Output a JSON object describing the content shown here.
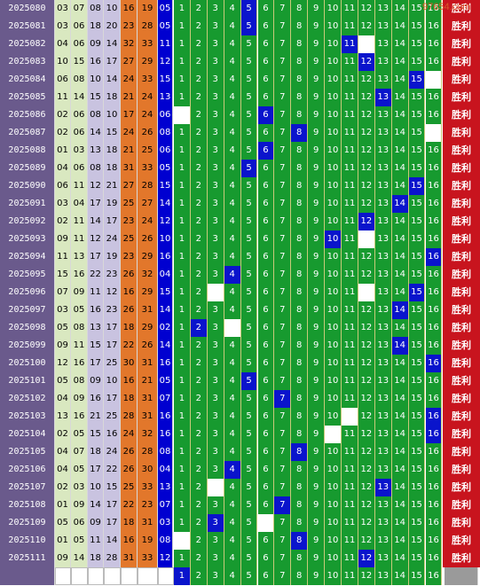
{
  "watermark": "97654.com",
  "win_label": "胜利",
  "colors": {
    "issue_bg": "#6a5a8c",
    "red_col_bgs": [
      "#d9e8c0",
      "#d9e8c0",
      "#c9c3e0",
      "#c9c3e0",
      "#e2772b",
      "#e2772b"
    ],
    "blue_bg": "#0000d0",
    "grid_bg": "#179a2f",
    "hit_bg": "#0a14cc",
    "win_bg": "#c8141e"
  },
  "rows": [
    {
      "issue": "2025080",
      "reds": [
        "03",
        "07",
        "08",
        "10",
        "16",
        "19"
      ],
      "blue": "05",
      "hit": 5,
      "miss": []
    },
    {
      "issue": "2025081",
      "reds": [
        "03",
        "06",
        "18",
        "20",
        "23",
        "28"
      ],
      "blue": "05",
      "hit": 5,
      "miss": []
    },
    {
      "issue": "2025082",
      "reds": [
        "04",
        "06",
        "09",
        "14",
        "32",
        "33"
      ],
      "blue": "11",
      "hit": 11,
      "miss": [
        12
      ]
    },
    {
      "issue": "2025083",
      "reds": [
        "10",
        "15",
        "16",
        "17",
        "27",
        "29"
      ],
      "blue": "12",
      "hit": 12,
      "miss": []
    },
    {
      "issue": "2025084",
      "reds": [
        "06",
        "08",
        "10",
        "14",
        "24",
        "33"
      ],
      "blue": "15",
      "hit": 15,
      "miss": [
        16
      ]
    },
    {
      "issue": "2025085",
      "reds": [
        "11",
        "14",
        "15",
        "18",
        "21",
        "24"
      ],
      "blue": "13",
      "hit": 13,
      "miss": []
    },
    {
      "issue": "2025086",
      "reds": [
        "02",
        "06",
        "08",
        "10",
        "17",
        "24"
      ],
      "blue": "06",
      "hit": 6,
      "miss": [
        1
      ]
    },
    {
      "issue": "2025087",
      "reds": [
        "02",
        "06",
        "14",
        "15",
        "24",
        "26"
      ],
      "blue": "08",
      "hit": 8,
      "miss": [
        16
      ]
    },
    {
      "issue": "2025088",
      "reds": [
        "01",
        "03",
        "13",
        "18",
        "21",
        "25"
      ],
      "blue": "06",
      "hit": 6,
      "miss": []
    },
    {
      "issue": "2025089",
      "reds": [
        "04",
        "06",
        "08",
        "18",
        "31",
        "33"
      ],
      "blue": "05",
      "hit": 5,
      "miss": []
    },
    {
      "issue": "2025090",
      "reds": [
        "06",
        "11",
        "12",
        "21",
        "27",
        "28"
      ],
      "blue": "15",
      "hit": 15,
      "miss": []
    },
    {
      "issue": "2025091",
      "reds": [
        "03",
        "04",
        "17",
        "19",
        "25",
        "27"
      ],
      "blue": "14",
      "hit": 14,
      "miss": []
    },
    {
      "issue": "2025092",
      "reds": [
        "02",
        "11",
        "14",
        "17",
        "23",
        "24"
      ],
      "blue": "12",
      "hit": 12,
      "miss": []
    },
    {
      "issue": "2025093",
      "reds": [
        "09",
        "11",
        "12",
        "24",
        "25",
        "26"
      ],
      "blue": "10",
      "hit": 10,
      "miss": [
        12
      ]
    },
    {
      "issue": "2025094",
      "reds": [
        "11",
        "13",
        "17",
        "19",
        "23",
        "29"
      ],
      "blue": "16",
      "hit": 16,
      "miss": []
    },
    {
      "issue": "2025095",
      "reds": [
        "15",
        "16",
        "22",
        "23",
        "26",
        "32"
      ],
      "blue": "04",
      "hit": 4,
      "miss": []
    },
    {
      "issue": "2025096",
      "reds": [
        "07",
        "09",
        "11",
        "12",
        "16",
        "29"
      ],
      "blue": "15",
      "hit": 15,
      "miss": [
        3,
        12
      ]
    },
    {
      "issue": "2025097",
      "reds": [
        "03",
        "05",
        "16",
        "23",
        "26",
        "31"
      ],
      "blue": "14",
      "hit": 14,
      "miss": []
    },
    {
      "issue": "2025098",
      "reds": [
        "05",
        "08",
        "13",
        "17",
        "18",
        "29"
      ],
      "blue": "02",
      "hit": 2,
      "miss": [
        4
      ]
    },
    {
      "issue": "2025099",
      "reds": [
        "09",
        "11",
        "15",
        "17",
        "22",
        "26"
      ],
      "blue": "14",
      "hit": 14,
      "miss": []
    },
    {
      "issue": "2025100",
      "reds": [
        "12",
        "16",
        "17",
        "25",
        "30",
        "31"
      ],
      "blue": "16",
      "hit": 16,
      "miss": []
    },
    {
      "issue": "2025101",
      "reds": [
        "05",
        "08",
        "09",
        "10",
        "16",
        "21"
      ],
      "blue": "05",
      "hit": 5,
      "miss": []
    },
    {
      "issue": "2025102",
      "reds": [
        "04",
        "09",
        "16",
        "17",
        "18",
        "31"
      ],
      "blue": "07",
      "hit": 7,
      "miss": []
    },
    {
      "issue": "2025103",
      "reds": [
        "13",
        "16",
        "21",
        "25",
        "28",
        "31"
      ],
      "blue": "16",
      "hit": 16,
      "miss": [
        11
      ]
    },
    {
      "issue": "2025104",
      "reds": [
        "02",
        "05",
        "15",
        "16",
        "24",
        "32"
      ],
      "blue": "16",
      "hit": 16,
      "miss": [
        10
      ]
    },
    {
      "issue": "2025105",
      "reds": [
        "04",
        "07",
        "18",
        "24",
        "26",
        "28"
      ],
      "blue": "08",
      "hit": 8,
      "miss": []
    },
    {
      "issue": "2025106",
      "reds": [
        "04",
        "05",
        "17",
        "22",
        "26",
        "30"
      ],
      "blue": "04",
      "hit": 4,
      "miss": []
    },
    {
      "issue": "2025107",
      "reds": [
        "02",
        "03",
        "10",
        "15",
        "25",
        "33"
      ],
      "blue": "13",
      "hit": 13,
      "miss": [
        3
      ]
    },
    {
      "issue": "2025108",
      "reds": [
        "01",
        "09",
        "14",
        "17",
        "22",
        "23"
      ],
      "blue": "07",
      "hit": 7,
      "miss": []
    },
    {
      "issue": "2025109",
      "reds": [
        "05",
        "06",
        "09",
        "17",
        "18",
        "31"
      ],
      "blue": "03",
      "hit": 3,
      "miss": [
        6
      ]
    },
    {
      "issue": "2025110",
      "reds": [
        "01",
        "05",
        "11",
        "14",
        "16",
        "19"
      ],
      "blue": "08",
      "hit": 8,
      "miss": [
        1
      ]
    },
    {
      "issue": "2025111",
      "reds": [
        "09",
        "14",
        "18",
        "28",
        "31",
        "33"
      ],
      "blue": "12",
      "hit": 12,
      "miss": []
    }
  ],
  "bottom_hit": 1
}
